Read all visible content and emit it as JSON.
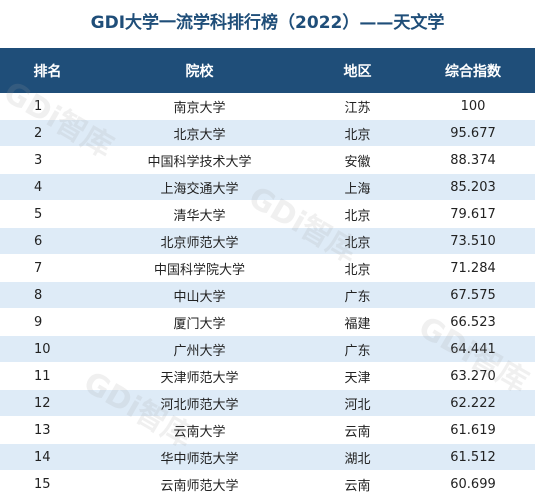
{
  "title": "GDI大学一流学科排行榜（2022）——天文学",
  "watermark": "GDi智库",
  "table": {
    "headers": [
      "排名",
      "院校",
      "地区",
      "综合指数"
    ],
    "rows": [
      [
        "1",
        "南京大学",
        "江苏",
        "100"
      ],
      [
        "2",
        "北京大学",
        "北京",
        "95.677"
      ],
      [
        "3",
        "中国科学技术大学",
        "安徽",
        "88.374"
      ],
      [
        "4",
        "上海交通大学",
        "上海",
        "85.203"
      ],
      [
        "5",
        "清华大学",
        "北京",
        "79.617"
      ],
      [
        "6",
        "北京师范大学",
        "北京",
        "73.510"
      ],
      [
        "7",
        "中国科学院大学",
        "北京",
        "71.284"
      ],
      [
        "8",
        "中山大学",
        "广东",
        "67.575"
      ],
      [
        "9",
        "厦门大学",
        "福建",
        "66.523"
      ],
      [
        "10",
        "广州大学",
        "广东",
        "64.441"
      ],
      [
        "11",
        "天津师范大学",
        "天津",
        "63.270"
      ],
      [
        "12",
        "河北师范大学",
        "河北",
        "62.222"
      ],
      [
        "13",
        "云南大学",
        "云南",
        "61.619"
      ],
      [
        "14",
        "华中师范大学",
        "湖北",
        "61.512"
      ],
      [
        "15",
        "云南师范大学",
        "云南",
        "60.699"
      ]
    ]
  }
}
